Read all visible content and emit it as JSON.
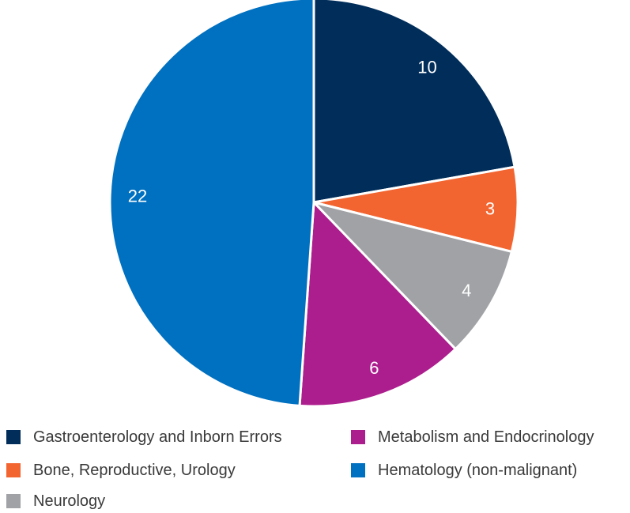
{
  "chart_data": {
    "type": "pie",
    "title": "",
    "legend_position": "bottom",
    "start_angle": "12 o'clock, clockwise",
    "slices": [
      {
        "name": "Gastroenterology and Inborn Errors",
        "value": 10,
        "label": "10",
        "color": "#002d5a"
      },
      {
        "name": "Bone, Reproductive, Urology",
        "value": 3,
        "label": "3",
        "color": "#f26531"
      },
      {
        "name": "Neurology",
        "value": 4,
        "label": "4",
        "color": "#a0a2a5"
      },
      {
        "name": "Metabolism and Endocrinology",
        "value": 6,
        "label": "6",
        "color": "#ac1d8d"
      },
      {
        "name": "Hematology (non-malignant)",
        "value": 22,
        "label": "22",
        "color": "#0070c0"
      }
    ]
  }
}
